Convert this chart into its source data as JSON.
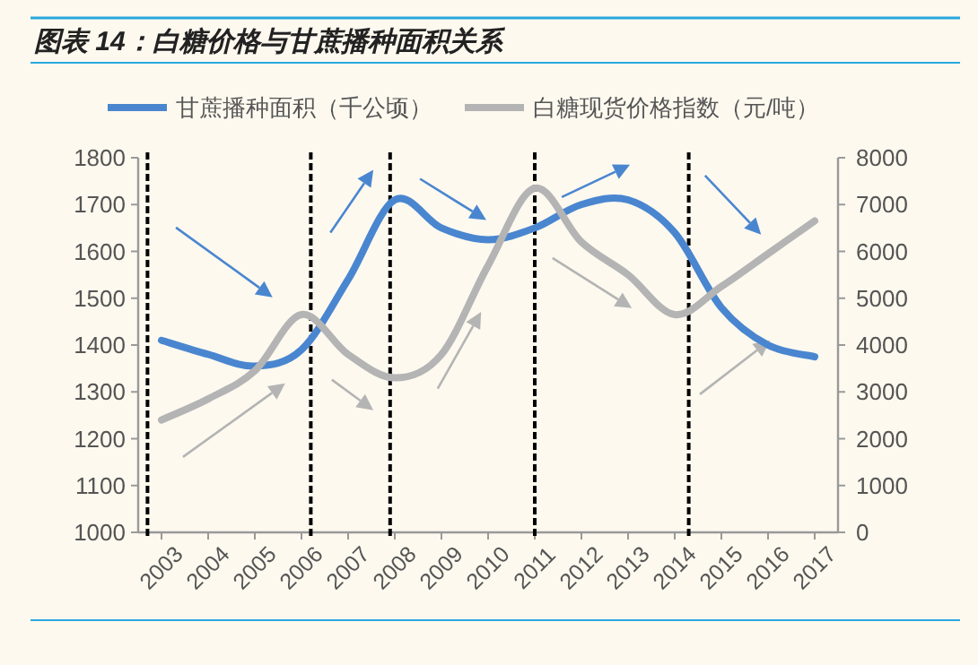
{
  "chart_data": {
    "type": "line",
    "title": "图表 14：白糖价格与甘蔗播种面积关系",
    "x": [
      2003,
      2004,
      2005,
      2006,
      2007,
      2008,
      2009,
      2010,
      2011,
      2012,
      2013,
      2014,
      2015,
      2016,
      2017
    ],
    "series": [
      {
        "name": "甘蔗播种面积（千公顷）",
        "color": "#4a86d0",
        "values": [
          1410,
          1380,
          1355,
          1390,
          1540,
          1710,
          1650,
          1625,
          1650,
          1700,
          1710,
          1640,
          1480,
          1400,
          1375
        ]
      },
      {
        "name": "白糖现货价格指数（元/吨）",
        "color": "#b4b4b4",
        "axis": "y2",
        "values": [
          2400,
          2850,
          3450,
          4650,
          3800,
          3300,
          3800,
          5700,
          7350,
          6200,
          5500,
          4650,
          5250,
          5950,
          6650
        ]
      }
    ],
    "xlim": [
      2002.5,
      2017.5
    ],
    "xticks": [
      2003,
      2004,
      2005,
      2006,
      2007,
      2008,
      2009,
      2010,
      2011,
      2012,
      2013,
      2014,
      2015,
      2016,
      2017
    ],
    "ylim": [
      1000,
      1800
    ],
    "yticks": [
      1000,
      1100,
      1200,
      1300,
      1400,
      1500,
      1600,
      1700,
      1800
    ],
    "y2lim": [
      0,
      8000
    ],
    "y2ticks": [
      0,
      1000,
      2000,
      3000,
      4000,
      5000,
      6000,
      7000,
      8000
    ],
    "ref_lines": [
      {
        "axis": "x",
        "value": 2002.7,
        "color": "#000000",
        "line_style": "dashed"
      },
      {
        "axis": "x",
        "value": 2006.2,
        "color": "#000000",
        "line_style": "dashed"
      },
      {
        "axis": "x",
        "value": 2007.9,
        "color": "#000000",
        "line_style": "dashed"
      },
      {
        "axis": "x",
        "value": 2011.0,
        "color": "#000000",
        "line_style": "dashed"
      },
      {
        "axis": "x",
        "value": 2014.3,
        "color": "#000000",
        "line_style": "dashed"
      }
    ],
    "legend": "top",
    "grid": false,
    "marker": "none",
    "line_style": "solid"
  }
}
